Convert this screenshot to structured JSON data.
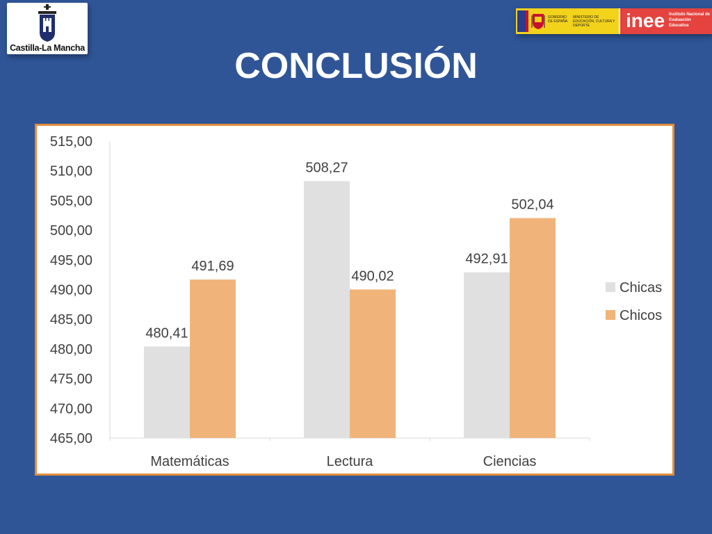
{
  "slide": {
    "title": "CONCLUSIÓN",
    "logo_left_text": "Castilla-La Mancha",
    "logo_right": {
      "gov_text": "GOBIERNO DE ESPAÑA",
      "ministry_text": "MINISTERIO DE EDUCACIÓN, CULTURA Y DEPORTE",
      "inee_word": "inee",
      "inee_text": "Instituto Nacional de Evaluación Educativa"
    },
    "colors": {
      "background": "#2f5597",
      "chart_border": "#e38d3b"
    }
  },
  "chart_data": {
    "type": "bar",
    "categories": [
      "Matemáticas",
      "Lectura",
      "Ciencias"
    ],
    "series": [
      {
        "name": "Chicas",
        "values": [
          480.41,
          508.27,
          492.91
        ],
        "labels": [
          "480,41",
          "508,27",
          "492,91"
        ],
        "color": "#e0e0e0"
      },
      {
        "name": "Chicos",
        "values": [
          491.69,
          490.02,
          502.04
        ],
        "labels": [
          "491,69",
          "490,02",
          "502,04"
        ],
        "color": "#f0b47a"
      }
    ],
    "ylim": [
      465,
      515
    ],
    "yticks": [
      "465,00",
      "470,00",
      "475,00",
      "480,00",
      "485,00",
      "490,00",
      "495,00",
      "500,00",
      "505,00",
      "510,00",
      "515,00"
    ],
    "ytick_values": [
      465,
      470,
      475,
      480,
      485,
      490,
      495,
      500,
      505,
      510,
      515
    ],
    "legend_position": "right",
    "grid": false
  }
}
